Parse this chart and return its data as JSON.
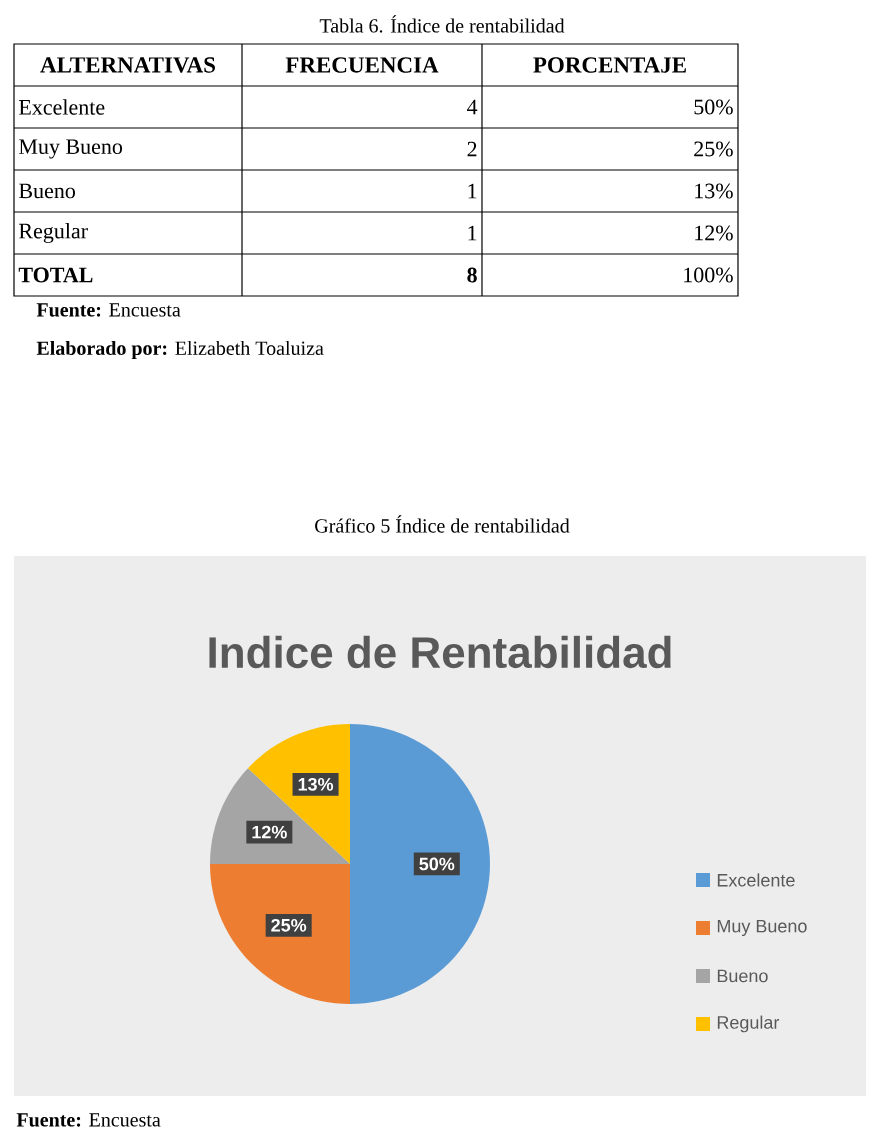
{
  "chart_data": {
    "type": "pie",
    "title": "Indice de Rentabilidad",
    "categories": [
      "Excelente",
      "Muy Bueno",
      "Bueno",
      "Regular"
    ],
    "values": [
      50,
      25,
      12,
      13
    ],
    "colors": [
      "#5b9bd5",
      "#ed7d31",
      "#a5a5a5",
      "#ffc000"
    ],
    "value_labels": [
      "50%",
      "25%",
      "12%",
      "13%"
    ],
    "legend": "right",
    "annotations": [
      "Tabla 6.  Índice de rentabilidad",
      "ALTERNATIVAS",
      "FRECUENCIA",
      "PORCENTAJE",
      "Excelente",
      "4",
      "50%",
      "Muy Bueno",
      "2",
      "25%",
      "Bueno",
      "1",
      "13%",
      "Regular",
      "1",
      "12%",
      "TOTAL",
      "8",
      "100%",
      "**Fuente:** Encuesta",
      "**Elaborado por:** Elizabeth Toaluiza",
      "Gráfico 5 Índice de rentabilidad",
      "**Fuente:** Encuesta"
    ]
  }
}
